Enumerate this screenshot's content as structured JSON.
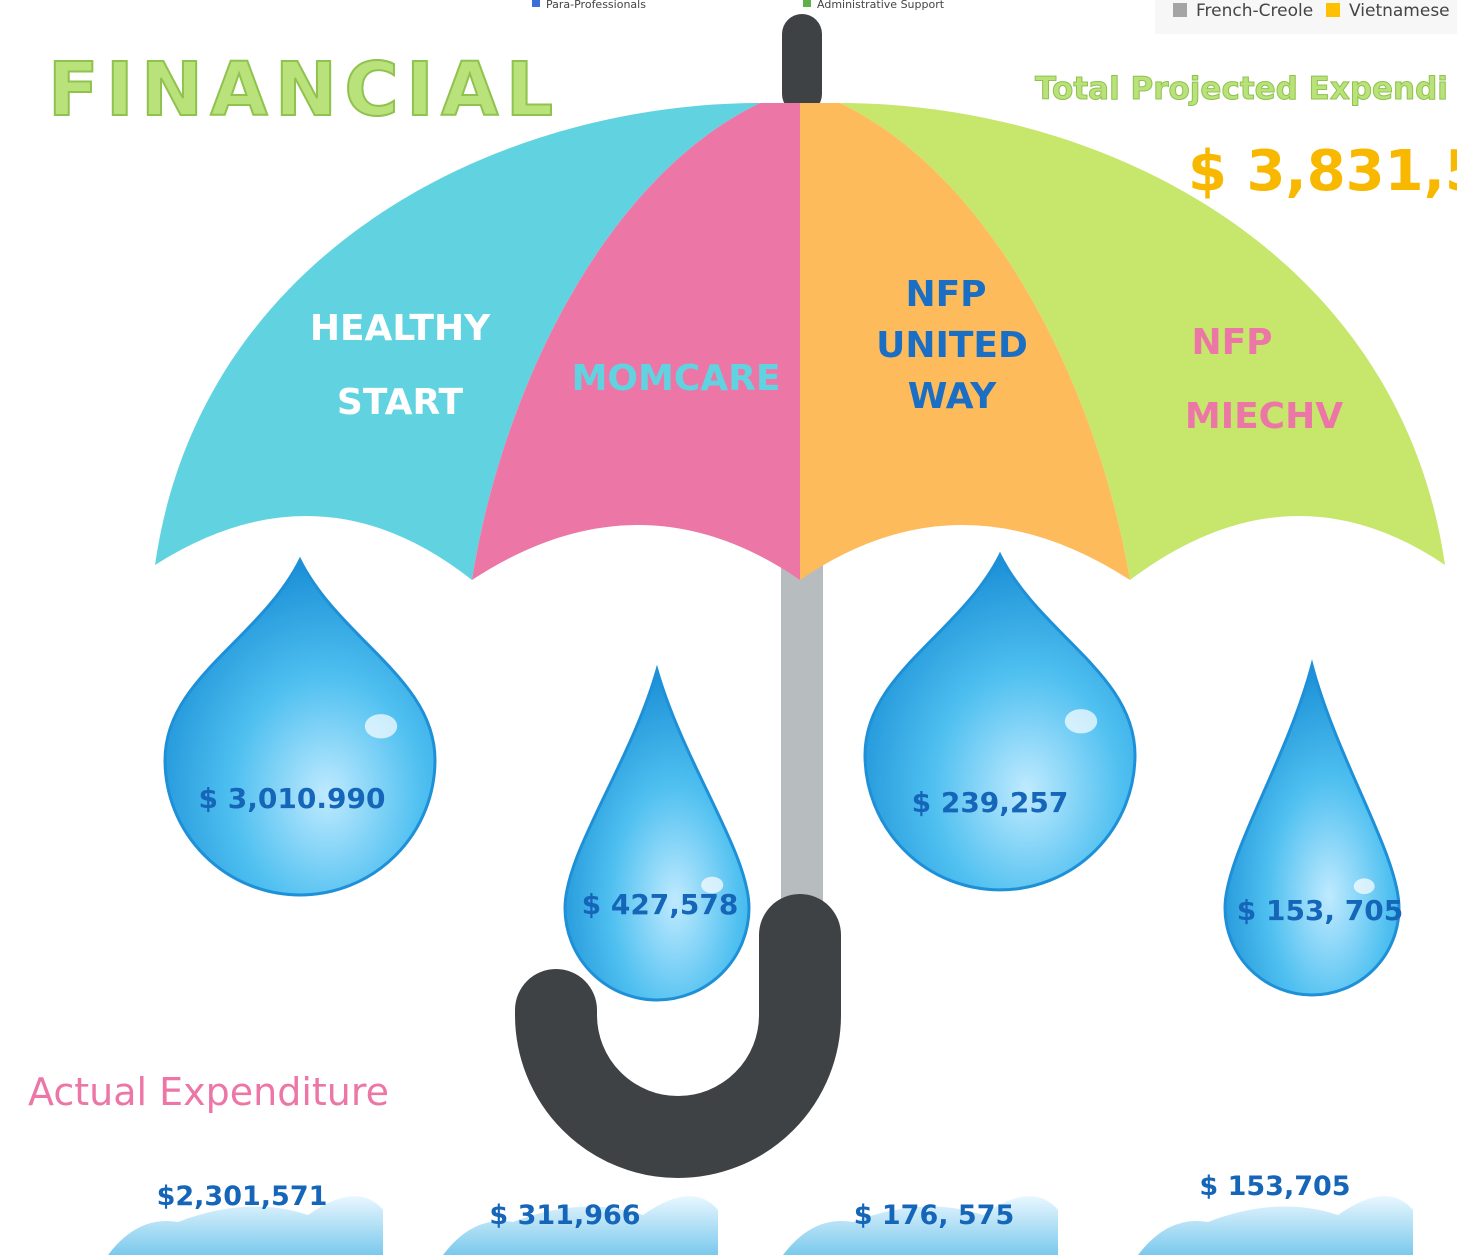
{
  "legend_top": {
    "items": [
      "Para-Professionals",
      "Administrative Support"
    ]
  },
  "legend_right": {
    "items": [
      "French-Creole",
      "Vietnamese"
    ]
  },
  "header": {
    "title": "FINANCIAL",
    "projected_label": "Total Projected Expendi",
    "projected_value": "$ 3,831,5"
  },
  "umbrella": {
    "segments": [
      {
        "lines": [
          "HEALTHY",
          "START"
        ]
      },
      {
        "lines": [
          "MOMCARE"
        ]
      },
      {
        "lines": [
          "NFP",
          "UNITED",
          "WAY"
        ]
      },
      {
        "lines": [
          "NFP",
          "MIECHV"
        ]
      }
    ]
  },
  "drops": [
    "$ 3,010.990",
    "$ 427,578",
    "$ 239,257",
    "$ 153, 705"
  ],
  "actual": {
    "title": "Actual Expenditure",
    "values": [
      "$2,301,571",
      "$ 311,966",
      "$ 176, 575",
      "$ 153,705"
    ]
  }
}
